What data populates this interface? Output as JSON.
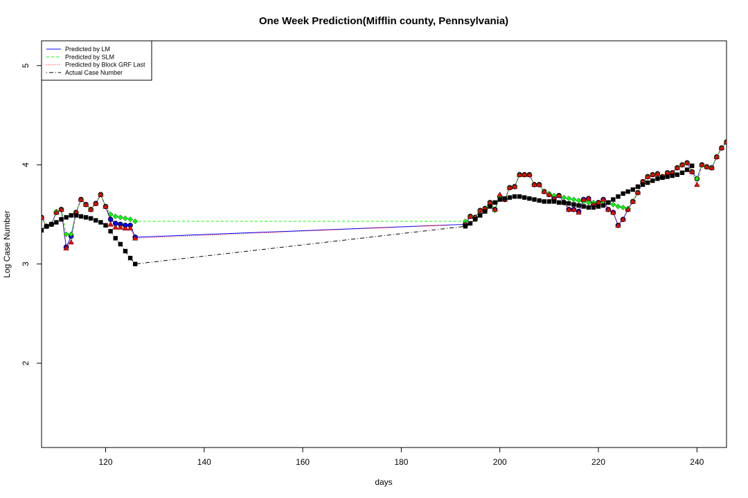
{
  "chart_data": {
    "type": "line",
    "title": "One Week Prediction(Mifflin county, Pennsylvania)",
    "xlabel": "days",
    "ylabel": "Log Case Number",
    "xlim": [
      107,
      246
    ],
    "ylim": [
      1.15,
      5.25
    ],
    "xticks": [
      120,
      140,
      160,
      180,
      200,
      220,
      240
    ],
    "yticks": [
      2,
      3,
      4,
      5
    ],
    "legend_position": "top-left",
    "grid": false,
    "series": [
      {
        "name": "Predicted by LM",
        "color": "#0000ff",
        "line": "solid",
        "marker": "circle",
        "points": [
          [
            107,
            3.47
          ],
          [
            108,
            3.38
          ],
          [
            109,
            3.4
          ],
          [
            110,
            3.52
          ],
          [
            111,
            3.55
          ],
          [
            112,
            3.17
          ],
          [
            113,
            3.28
          ],
          [
            114,
            3.52
          ],
          [
            115,
            3.65
          ],
          [
            116,
            3.6
          ],
          [
            117,
            3.55
          ],
          [
            118,
            3.61
          ],
          [
            119,
            3.7
          ],
          [
            120,
            3.58
          ],
          [
            121,
            3.45
          ],
          [
            122,
            3.41
          ],
          [
            123,
            3.4
          ],
          [
            124,
            3.39
          ],
          [
            125,
            3.39
          ],
          [
            126,
            3.27
          ],
          [
            193,
            3.4
          ],
          [
            194,
            3.48
          ],
          [
            195,
            3.47
          ],
          [
            196,
            3.54
          ],
          [
            197,
            3.56
          ],
          [
            198,
            3.62
          ],
          [
            199,
            3.55
          ],
          [
            200,
            3.68
          ],
          [
            201,
            3.65
          ],
          [
            202,
            3.77
          ],
          [
            203,
            3.78
          ],
          [
            204,
            3.9
          ],
          [
            205,
            3.9
          ],
          [
            206,
            3.9
          ],
          [
            207,
            3.8
          ],
          [
            208,
            3.8
          ],
          [
            209,
            3.73
          ],
          [
            210,
            3.7
          ],
          [
            211,
            3.66
          ],
          [
            212,
            3.69
          ],
          [
            213,
            3.62
          ],
          [
            214,
            3.55
          ],
          [
            215,
            3.55
          ],
          [
            216,
            3.53
          ],
          [
            217,
            3.65
          ],
          [
            218,
            3.66
          ],
          [
            219,
            3.6
          ],
          [
            220,
            3.62
          ],
          [
            221,
            3.65
          ],
          [
            222,
            3.55
          ],
          [
            223,
            3.52
          ],
          [
            224,
            3.39
          ],
          [
            225,
            3.45
          ],
          [
            226,
            3.55
          ],
          [
            227,
            3.63
          ],
          [
            228,
            3.72
          ],
          [
            229,
            3.83
          ],
          [
            230,
            3.88
          ],
          [
            231,
            3.9
          ],
          [
            232,
            3.91
          ],
          [
            233,
            3.88
          ],
          [
            234,
            3.92
          ],
          [
            235,
            3.92
          ],
          [
            236,
            3.97
          ],
          [
            237,
            4.0
          ],
          [
            238,
            4.02
          ],
          [
            239,
            3.93
          ],
          [
            240,
            3.86
          ],
          [
            241,
            4.0
          ],
          [
            242,
            3.98
          ],
          [
            243,
            3.97
          ],
          [
            244,
            4.08
          ],
          [
            245,
            4.17
          ],
          [
            246,
            4.23
          ]
        ]
      },
      {
        "name": "Predicted by SLM",
        "color": "#00ff00",
        "line": "dashed",
        "marker": "diamond",
        "points": [
          [
            107,
            3.47
          ],
          [
            108,
            3.38
          ],
          [
            109,
            3.4
          ],
          [
            110,
            3.53
          ],
          [
            111,
            3.55
          ],
          [
            112,
            3.3
          ],
          [
            113,
            3.3
          ],
          [
            114,
            3.52
          ],
          [
            115,
            3.65
          ],
          [
            116,
            3.6
          ],
          [
            117,
            3.55
          ],
          [
            118,
            3.61
          ],
          [
            119,
            3.7
          ],
          [
            120,
            3.58
          ],
          [
            121,
            3.5
          ],
          [
            122,
            3.48
          ],
          [
            123,
            3.47
          ],
          [
            124,
            3.46
          ],
          [
            125,
            3.45
          ],
          [
            126,
            3.43
          ],
          [
            193,
            3.43
          ],
          [
            194,
            3.48
          ],
          [
            195,
            3.47
          ],
          [
            196,
            3.54
          ],
          [
            197,
            3.56
          ],
          [
            198,
            3.62
          ],
          [
            199,
            3.54
          ],
          [
            200,
            3.68
          ],
          [
            201,
            3.65
          ],
          [
            202,
            3.77
          ],
          [
            203,
            3.78
          ],
          [
            204,
            3.9
          ],
          [
            205,
            3.9
          ],
          [
            206,
            3.9
          ],
          [
            207,
            3.8
          ],
          [
            208,
            3.8
          ],
          [
            209,
            3.73
          ],
          [
            210,
            3.71
          ],
          [
            211,
            3.69
          ],
          [
            212,
            3.69
          ],
          [
            213,
            3.67
          ],
          [
            214,
            3.66
          ],
          [
            215,
            3.65
          ],
          [
            216,
            3.64
          ],
          [
            217,
            3.63
          ],
          [
            218,
            3.62
          ],
          [
            219,
            3.62
          ],
          [
            220,
            3.62
          ],
          [
            221,
            3.63
          ],
          [
            222,
            3.62
          ],
          [
            223,
            3.6
          ],
          [
            224,
            3.58
          ],
          [
            225,
            3.57
          ],
          [
            226,
            3.56
          ],
          [
            227,
            3.63
          ],
          [
            228,
            3.72
          ],
          [
            229,
            3.83
          ],
          [
            230,
            3.88
          ],
          [
            231,
            3.9
          ],
          [
            232,
            3.91
          ],
          [
            233,
            3.88
          ],
          [
            234,
            3.92
          ],
          [
            235,
            3.92
          ],
          [
            236,
            3.97
          ],
          [
            237,
            4.0
          ],
          [
            238,
            4.02
          ],
          [
            239,
            3.93
          ],
          [
            240,
            3.86
          ],
          [
            241,
            4.0
          ],
          [
            242,
            3.98
          ],
          [
            243,
            3.97
          ],
          [
            244,
            4.08
          ],
          [
            245,
            4.17
          ],
          [
            246,
            4.23
          ]
        ]
      },
      {
        "name": "Predicted by Block GRF Last",
        "color": "#ff0000",
        "line": "dotted",
        "marker": "triangle",
        "points": [
          [
            107,
            3.47
          ],
          [
            108,
            3.38
          ],
          [
            109,
            3.4
          ],
          [
            110,
            3.52
          ],
          [
            111,
            3.55
          ],
          [
            112,
            3.16
          ],
          [
            113,
            3.22
          ],
          [
            114,
            3.52
          ],
          [
            115,
            3.65
          ],
          [
            116,
            3.6
          ],
          [
            117,
            3.55
          ],
          [
            118,
            3.61
          ],
          [
            119,
            3.7
          ],
          [
            120,
            3.58
          ],
          [
            121,
            3.4
          ],
          [
            122,
            3.37
          ],
          [
            123,
            3.37
          ],
          [
            124,
            3.36
          ],
          [
            125,
            3.36
          ],
          [
            126,
            3.26
          ],
          [
            193,
            3.4
          ],
          [
            194,
            3.48
          ],
          [
            195,
            3.47
          ],
          [
            196,
            3.54
          ],
          [
            197,
            3.56
          ],
          [
            198,
            3.62
          ],
          [
            199,
            3.55
          ],
          [
            200,
            3.7
          ],
          [
            201,
            3.65
          ],
          [
            202,
            3.77
          ],
          [
            203,
            3.78
          ],
          [
            204,
            3.9
          ],
          [
            205,
            3.9
          ],
          [
            206,
            3.9
          ],
          [
            207,
            3.8
          ],
          [
            208,
            3.8
          ],
          [
            209,
            3.73
          ],
          [
            210,
            3.7
          ],
          [
            211,
            3.66
          ],
          [
            212,
            3.69
          ],
          [
            213,
            3.62
          ],
          [
            214,
            3.55
          ],
          [
            215,
            3.55
          ],
          [
            216,
            3.52
          ],
          [
            217,
            3.65
          ],
          [
            218,
            3.66
          ],
          [
            219,
            3.6
          ],
          [
            220,
            3.62
          ],
          [
            221,
            3.65
          ],
          [
            222,
            3.55
          ],
          [
            223,
            3.52
          ],
          [
            224,
            3.39
          ],
          [
            225,
            3.45
          ],
          [
            226,
            3.55
          ],
          [
            227,
            3.63
          ],
          [
            228,
            3.72
          ],
          [
            229,
            3.83
          ],
          [
            230,
            3.88
          ],
          [
            231,
            3.9
          ],
          [
            232,
            3.91
          ],
          [
            233,
            3.88
          ],
          [
            234,
            3.92
          ],
          [
            235,
            3.92
          ],
          [
            236,
            3.97
          ],
          [
            237,
            4.0
          ],
          [
            238,
            4.02
          ],
          [
            239,
            3.93
          ],
          [
            240,
            3.8
          ],
          [
            241,
            4.0
          ],
          [
            242,
            3.98
          ],
          [
            243,
            3.97
          ],
          [
            244,
            4.08
          ],
          [
            245,
            4.17
          ],
          [
            246,
            4.23
          ]
        ]
      },
      {
        "name": "Actual Case Number",
        "color": "#000000",
        "line": "dotdash",
        "marker": "square",
        "points": [
          [
            107,
            3.34
          ],
          [
            108,
            3.38
          ],
          [
            109,
            3.4
          ],
          [
            110,
            3.42
          ],
          [
            111,
            3.45
          ],
          [
            112,
            3.47
          ],
          [
            113,
            3.49
          ],
          [
            114,
            3.49
          ],
          [
            115,
            3.48
          ],
          [
            116,
            3.47
          ],
          [
            117,
            3.46
          ],
          [
            118,
            3.44
          ],
          [
            119,
            3.42
          ],
          [
            120,
            3.39
          ],
          [
            121,
            3.33
          ],
          [
            122,
            3.26
          ],
          [
            123,
            3.2
          ],
          [
            124,
            3.13
          ],
          [
            125,
            3.06
          ],
          [
            126,
            3.0
          ],
          [
            193,
            3.38
          ],
          [
            194,
            3.41
          ],
          [
            195,
            3.45
          ],
          [
            196,
            3.49
          ],
          [
            197,
            3.53
          ],
          [
            198,
            3.58
          ],
          [
            199,
            3.62
          ],
          [
            200,
            3.65
          ],
          [
            201,
            3.66
          ],
          [
            202,
            3.67
          ],
          [
            203,
            3.68
          ],
          [
            204,
            3.68
          ],
          [
            205,
            3.67
          ],
          [
            206,
            3.66
          ],
          [
            207,
            3.65
          ],
          [
            208,
            3.64
          ],
          [
            209,
            3.63
          ],
          [
            210,
            3.63
          ],
          [
            211,
            3.63
          ],
          [
            212,
            3.62
          ],
          [
            213,
            3.62
          ],
          [
            214,
            3.61
          ],
          [
            215,
            3.6
          ],
          [
            216,
            3.59
          ],
          [
            217,
            3.58
          ],
          [
            218,
            3.57
          ],
          [
            219,
            3.57
          ],
          [
            220,
            3.58
          ],
          [
            221,
            3.59
          ],
          [
            222,
            3.62
          ],
          [
            223,
            3.65
          ],
          [
            224,
            3.68
          ],
          [
            225,
            3.71
          ],
          [
            226,
            3.73
          ],
          [
            227,
            3.75
          ],
          [
            228,
            3.78
          ],
          [
            229,
            3.8
          ],
          [
            230,
            3.82
          ],
          [
            231,
            3.84
          ],
          [
            232,
            3.86
          ],
          [
            233,
            3.87
          ],
          [
            234,
            3.88
          ],
          [
            235,
            3.89
          ],
          [
            236,
            3.9
          ],
          [
            237,
            3.92
          ],
          [
            238,
            3.95
          ],
          [
            239,
            3.99
          ]
        ]
      }
    ]
  }
}
